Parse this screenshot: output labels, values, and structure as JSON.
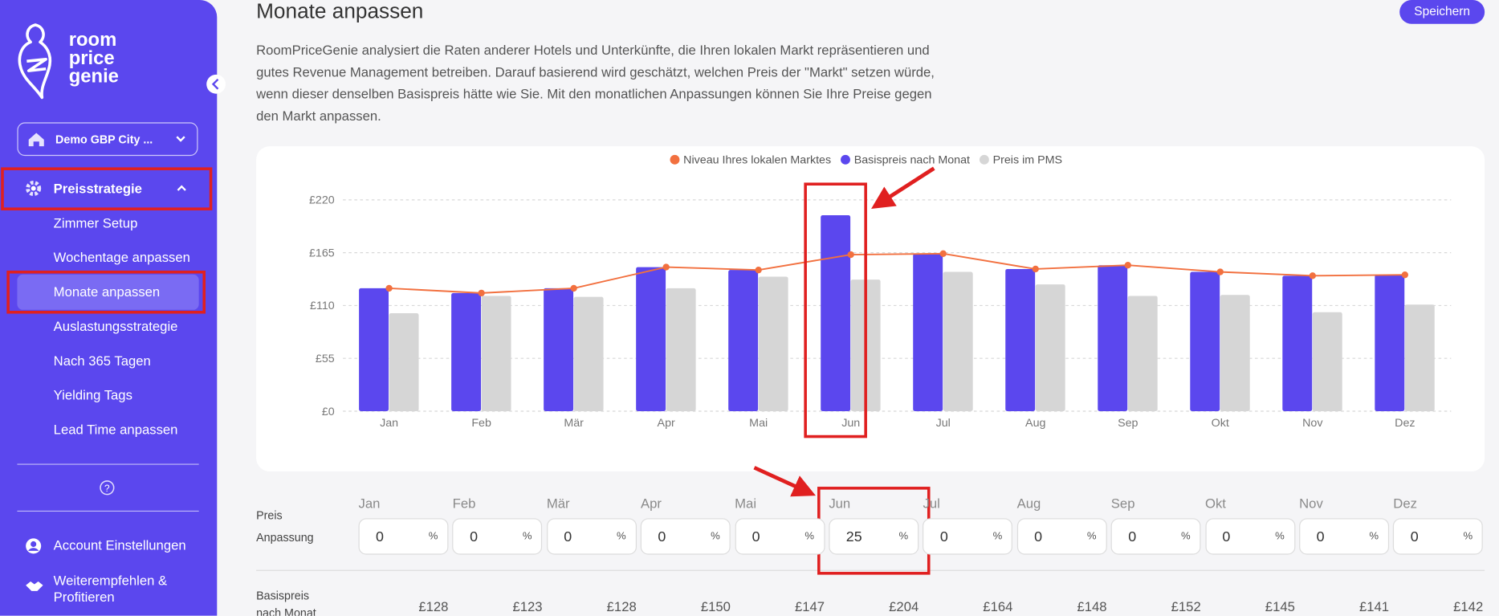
{
  "sidebar": {
    "logo": [
      "room",
      "price",
      "genie"
    ],
    "property": "Demo GBP City ...",
    "section": "Preisstrategie",
    "items": [
      "Zimmer Setup",
      "Wochentage anpassen",
      "Monate anpassen",
      "Auslastungsstrategie",
      "Nach 365 Tagen",
      "Yielding Tags",
      "Lead Time anpassen"
    ],
    "footer": [
      "Account Einstellungen",
      "Weiterempfehlen & Profitieren"
    ]
  },
  "header": {
    "title": "Monate anpassen",
    "save_button": "Speichern",
    "description": "RoomPriceGenie analysiert die Raten anderer Hotels und Unterkünfte, die Ihren lokalen Markt repräsentieren und gutes Revenue Management betreiben. Darauf basierend wird geschätzt, welchen Preis der \"Markt\" setzen würde, wenn dieser denselben Basispreis hätte wie Sie. Mit den monatlichen Anpassungen können Sie Ihre Preise gegen den Markt anpassen."
  },
  "chart_data": {
    "type": "combo",
    "categories": [
      "Jan",
      "Feb",
      "Mär",
      "Apr",
      "Mai",
      "Jun",
      "Jul",
      "Aug",
      "Sep",
      "Okt",
      "Nov",
      "Dez"
    ],
    "series": [
      {
        "name": "Niveau Ihres lokalen Marktes",
        "type": "line",
        "color": "#f2703f",
        "values": [
          128,
          123,
          128,
          150,
          147,
          163,
          164,
          148,
          152,
          145,
          141,
          142
        ]
      },
      {
        "name": "Basispreis nach Monat",
        "type": "bar",
        "color": "#5b47ee",
        "values": [
          128,
          123,
          128,
          150,
          147,
          204,
          164,
          148,
          152,
          145,
          141,
          142
        ]
      },
      {
        "name": "Preis im PMS",
        "type": "bar",
        "color": "#d6d6d6",
        "values": [
          102,
          120,
          119,
          128,
          140,
          137,
          145,
          132,
          120,
          121,
          103,
          111
        ]
      }
    ],
    "ylim": [
      0,
      220
    ],
    "yticks": [
      {
        "value": 0,
        "label": "£0"
      },
      {
        "value": 55,
        "label": "£55"
      },
      {
        "value": 110,
        "label": "£110"
      },
      {
        "value": 165,
        "label": "£165"
      },
      {
        "value": 220,
        "label": "£220"
      }
    ],
    "grid": true,
    "legend": "top"
  },
  "adjustments": {
    "label": "Preis Anpassung",
    "unit": "%",
    "values": [
      0,
      0,
      0,
      0,
      0,
      25,
      0,
      0,
      0,
      0,
      0,
      0
    ]
  },
  "base_prices": {
    "label": "Basispreis nach Monat",
    "values": [
      "£128",
      "£123",
      "£128",
      "£150",
      "£147",
      "£204",
      "£164",
      "£148",
      "£152",
      "£145",
      "£141",
      "£142"
    ]
  }
}
